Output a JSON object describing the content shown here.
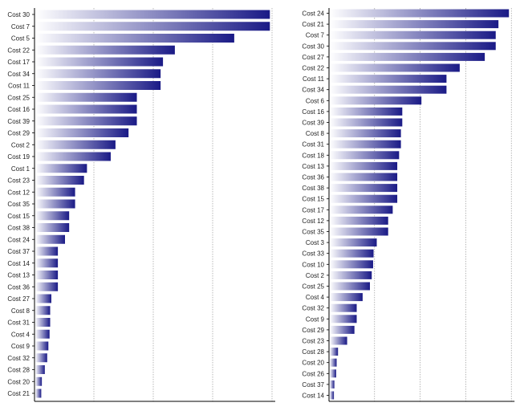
{
  "colors": {
    "bar_light": "#ffffff",
    "bar_dark": "#1a1a86",
    "axis": "#000000",
    "grid": "#8a8a8a"
  },
  "chart_data": [
    {
      "type": "bar",
      "orientation": "horizontal",
      "grid": true,
      "xlim": [
        0,
        40
      ],
      "categories": [
        "Cost 30",
        "Cost 7",
        "Cost 5",
        "Cost 22",
        "Cost 17",
        "Cost 34",
        "Cost 11",
        "Cost 25",
        "Cost 16",
        "Cost 39",
        "Cost 29",
        "Cost 2",
        "Cost 19",
        "Cost 1",
        "Cost 23",
        "Cost 12",
        "Cost 35",
        "Cost 15",
        "Cost 38",
        "Cost 24",
        "Cost 37",
        "Cost 14",
        "Cost 13",
        "Cost 36",
        "Cost 27",
        "Cost 8",
        "Cost 31",
        "Cost 4",
        "Cost 9",
        "Cost 32",
        "Cost 28",
        "Cost 20",
        "Cost 21"
      ],
      "values": [
        39.5,
        39.5,
        33.5,
        23.5,
        21.5,
        21.1,
        21.1,
        17.1,
        17.1,
        17.1,
        15.7,
        13.5,
        12.7,
        8.7,
        8.2,
        6.7,
        6.7,
        5.7,
        5.7,
        5.0,
        3.8,
        3.8,
        3.8,
        3.8,
        2.7,
        2.5,
        2.5,
        2.4,
        2.2,
        2.0,
        1.6,
        1.1,
        1.0
      ]
    },
    {
      "type": "bar",
      "orientation": "horizontal",
      "grid": true,
      "xlim": [
        0,
        40
      ],
      "categories": [
        "Cost 24",
        "Cost 21",
        "Cost 7",
        "Cost 30",
        "Cost 27",
        "Cost 22",
        "Cost 11",
        "Cost 34",
        "Cost 6",
        "Cost 16",
        "Cost 39",
        "Cost 8",
        "Cost 31",
        "Cost 18",
        "Cost 13",
        "Cost 36",
        "Cost 38",
        "Cost 15",
        "Cost 17",
        "Cost 12",
        "Cost 35",
        "Cost 3",
        "Cost 33",
        "Cost 10",
        "Cost 2",
        "Cost 25",
        "Cost 4",
        "Cost 32",
        "Cost 9",
        "Cost 29",
        "Cost 23",
        "Cost 28",
        "Cost 20",
        "Cost 26",
        "Cost 37",
        "Cost 14"
      ],
      "values": [
        39.3,
        37.0,
        36.4,
        36.4,
        34.0,
        28.5,
        25.6,
        25.6,
        20.1,
        15.9,
        15.9,
        15.6,
        15.6,
        15.2,
        14.8,
        14.8,
        14.8,
        14.8,
        13.8,
        12.8,
        12.8,
        10.3,
        9.6,
        9.5,
        9.2,
        8.8,
        7.2,
        5.9,
        5.9,
        5.4,
        3.8,
        1.8,
        1.5,
        1.4,
        1.0,
        0.9
      ]
    }
  ]
}
